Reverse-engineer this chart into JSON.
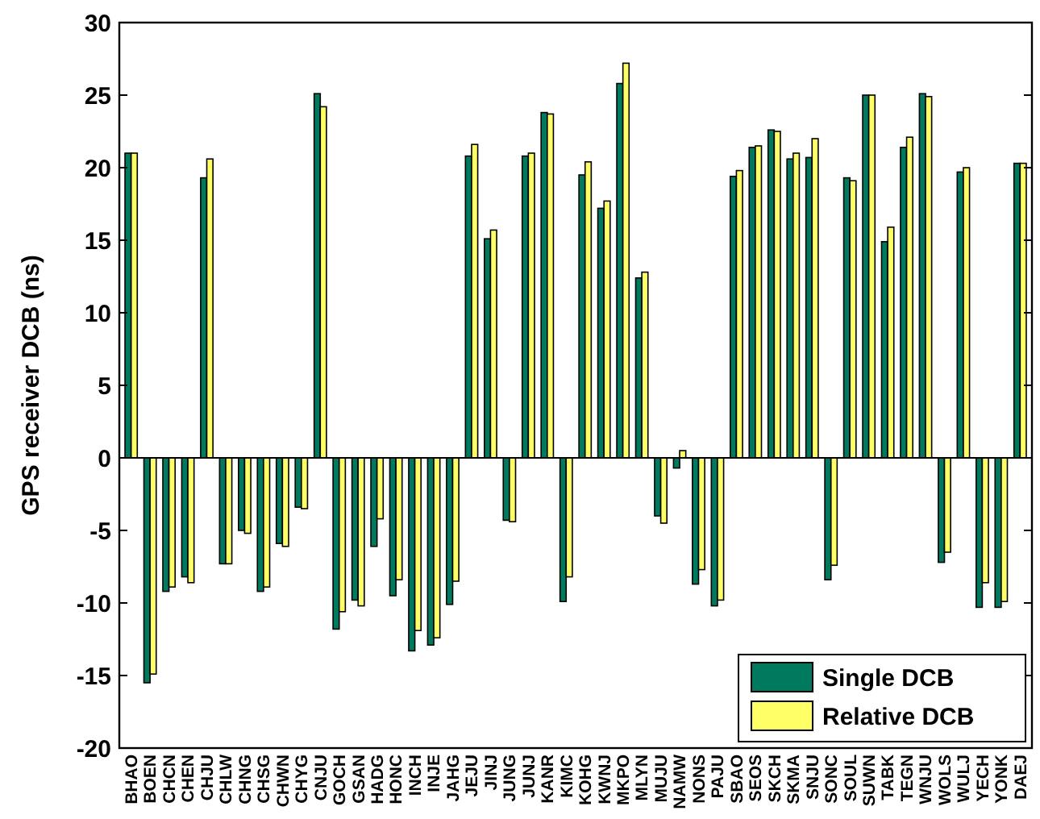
{
  "chart_data": {
    "type": "bar",
    "ylabel": "GPS receiver DCB (ns)",
    "categories": [
      "BHAO",
      "BOEN",
      "CHCN",
      "CHEN",
      "CHJU",
      "CHLW",
      "CHNG",
      "CHSG",
      "CHWN",
      "CHYG",
      "CNJU",
      "GOCH",
      "GSAN",
      "HADG",
      "HONC",
      "INCH",
      "INJE",
      "JAHG",
      "JEJU",
      "JINJ",
      "JUNG",
      "JUNJ",
      "KANR",
      "KIMC",
      "KOHG",
      "KWNJ",
      "MKPO",
      "MLYN",
      "MUJU",
      "NAMW",
      "NONS",
      "PAJU",
      "SBAO",
      "SEOS",
      "SKCH",
      "SKMA",
      "SNJU",
      "SONC",
      "SOUL",
      "SUWN",
      "TABK",
      "TEGN",
      "WNJU",
      "WOLS",
      "WULJ",
      "YECH",
      "YONK",
      "DAEJ"
    ],
    "series": [
      {
        "name": "Single DCB",
        "color": "#007a5e",
        "values": [
          21.0,
          -15.5,
          -9.2,
          -8.2,
          19.3,
          -7.3,
          -5.0,
          -9.2,
          -5.9,
          -3.4,
          25.1,
          -11.8,
          -9.8,
          -6.1,
          -9.5,
          -13.3,
          -12.9,
          -10.1,
          20.8,
          15.1,
          -4.3,
          20.8,
          23.8,
          -9.9,
          19.5,
          17.2,
          25.8,
          12.4,
          -4.0,
          -0.7,
          -8.7,
          -10.2,
          19.4,
          21.4,
          22.6,
          20.6,
          20.7,
          -8.4,
          19.3,
          25.0,
          14.9,
          21.4,
          25.1,
          -7.2,
          19.7,
          -10.3,
          -10.3,
          20.3
        ]
      },
      {
        "name": "Relative DCB",
        "color": "#ffff66",
        "values": [
          21.0,
          -14.9,
          -8.9,
          -8.6,
          20.6,
          -7.3,
          -5.2,
          -8.9,
          -6.1,
          -3.5,
          24.2,
          -10.6,
          -10.2,
          -4.2,
          -8.4,
          -11.9,
          -12.4,
          -8.5,
          21.6,
          15.7,
          -4.4,
          21.0,
          23.7,
          -8.2,
          20.4,
          17.7,
          27.2,
          12.8,
          -4.5,
          0.5,
          -7.7,
          -9.8,
          19.8,
          21.5,
          22.5,
          21.0,
          22.0,
          -7.4,
          19.1,
          25.0,
          15.9,
          22.1,
          24.9,
          -6.5,
          20.0,
          -8.6,
          -9.9,
          20.3
        ]
      }
    ],
    "ylim": [
      -20,
      30
    ],
    "yticks": [
      -20,
      -15,
      -10,
      -5,
      0,
      5,
      10,
      15,
      20,
      25,
      30
    ],
    "legend": "bottom right"
  }
}
